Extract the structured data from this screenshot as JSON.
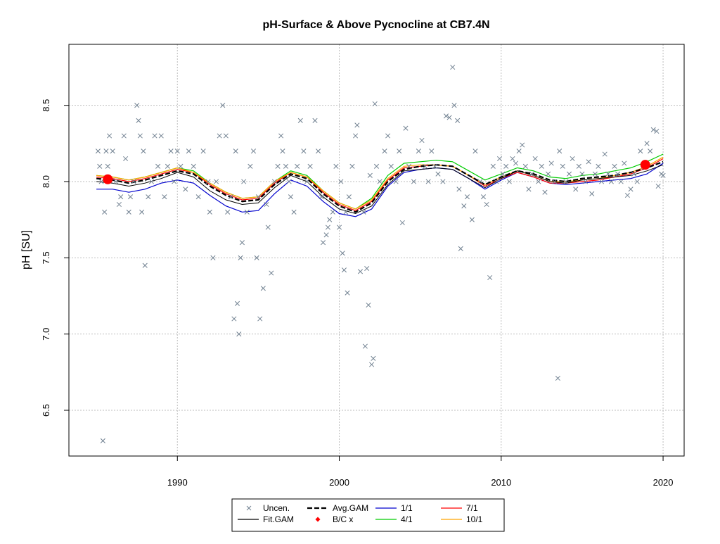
{
  "colors": {
    "uncensored": "#708090",
    "fit_gam": "#000000",
    "avg_gam": "#000000",
    "bc_x": "#ff0000",
    "ratio_1_1": "#0000cd",
    "ratio_4_1": "#00cc00",
    "ratio_7_1": "#ff0000",
    "ratio_10_1": "#ffa500",
    "grid": "#bebebe"
  },
  "chart_data": {
    "type": "scatter",
    "title": "pH-Surface & Above Pycnocline at CB7.4N",
    "xlabel": "",
    "ylabel": "pH [SU]",
    "xlim": [
      1983.3,
      2021.3
    ],
    "ylim": [
      6.2,
      8.9
    ],
    "x_ticks": [
      1990,
      2000,
      2010,
      2020
    ],
    "y_ticks": [
      6.5,
      7.0,
      7.5,
      8.0,
      8.5
    ],
    "x_tick_labels": [
      "1990",
      "2000",
      "2010",
      "2020"
    ],
    "y_tick_labels": [
      "6.5",
      "7.0",
      "7.5",
      "8.0",
      "8.5"
    ],
    "grid": true,
    "legend": {
      "placement": "bottom-center",
      "entries": [
        {
          "label": "Uncen.",
          "symbol": "x",
          "color_key": "uncensored"
        },
        {
          "label": "Avg.GAM",
          "symbol": "dashed-line",
          "color_key": "avg_gam"
        },
        {
          "label": "1/1",
          "symbol": "line",
          "color_key": "ratio_1_1"
        },
        {
          "label": "7/1",
          "symbol": "line",
          "color_key": "ratio_7_1"
        },
        {
          "label": "Fit.GAM",
          "symbol": "line",
          "color_key": "fit_gam"
        },
        {
          "label": "B/C x",
          "symbol": "diamond",
          "color_key": "bc_x"
        },
        {
          "label": "4/1",
          "symbol": "line",
          "color_key": "ratio_4_1"
        },
        {
          "label": "10/1",
          "symbol": "line",
          "color_key": "ratio_10_1"
        }
      ]
    },
    "uncensored_points": [
      [
        1985.1,
        8.2
      ],
      [
        1985.2,
        8.1
      ],
      [
        1985.3,
        8.0
      ],
      [
        1985.4,
        6.3
      ],
      [
        1985.5,
        7.8
      ],
      [
        1985.6,
        8.2
      ],
      [
        1985.7,
        8.1
      ],
      [
        1985.8,
        8.3
      ],
      [
        1986.0,
        8.2
      ],
      [
        1986.2,
        8.0
      ],
      [
        1986.4,
        7.85
      ],
      [
        1986.5,
        7.9
      ],
      [
        1986.7,
        8.3
      ],
      [
        1986.8,
        8.15
      ],
      [
        1987.0,
        7.8
      ],
      [
        1987.1,
        7.9
      ],
      [
        1987.3,
        8.0
      ],
      [
        1987.5,
        8.5
      ],
      [
        1987.6,
        8.4
      ],
      [
        1987.7,
        8.3
      ],
      [
        1987.8,
        7.8
      ],
      [
        1987.9,
        8.2
      ],
      [
        1988.0,
        7.45
      ],
      [
        1988.2,
        7.9
      ],
      [
        1988.4,
        8.0
      ],
      [
        1988.6,
        8.3
      ],
      [
        1988.8,
        8.1
      ],
      [
        1989.0,
        8.3
      ],
      [
        1989.2,
        7.9
      ],
      [
        1989.4,
        8.1
      ],
      [
        1989.6,
        8.2
      ],
      [
        1989.8,
        8.0
      ],
      [
        1990.0,
        8.2
      ],
      [
        1990.2,
        8.1
      ],
      [
        1990.5,
        7.95
      ],
      [
        1990.7,
        8.2
      ],
      [
        1991.0,
        8.1
      ],
      [
        1991.3,
        7.9
      ],
      [
        1991.6,
        8.2
      ],
      [
        1991.9,
        8.0
      ],
      [
        1992.0,
        7.8
      ],
      [
        1992.2,
        7.5
      ],
      [
        1992.4,
        8.0
      ],
      [
        1992.6,
        8.3
      ],
      [
        1992.8,
        8.5
      ],
      [
        1993.0,
        8.3
      ],
      [
        1993.1,
        7.8
      ],
      [
        1993.3,
        7.9
      ],
      [
        1993.5,
        7.1
      ],
      [
        1993.6,
        8.2
      ],
      [
        1993.7,
        7.2
      ],
      [
        1993.8,
        7.0
      ],
      [
        1993.9,
        7.5
      ],
      [
        1994.0,
        7.6
      ],
      [
        1994.1,
        8.0
      ],
      [
        1994.3,
        7.8
      ],
      [
        1994.5,
        8.1
      ],
      [
        1994.7,
        8.2
      ],
      [
        1994.9,
        7.5
      ],
      [
        1995.0,
        7.9
      ],
      [
        1995.1,
        7.1
      ],
      [
        1995.3,
        7.3
      ],
      [
        1995.5,
        7.85
      ],
      [
        1995.6,
        7.7
      ],
      [
        1995.8,
        7.4
      ],
      [
        1996.0,
        8.0
      ],
      [
        1996.2,
        8.1
      ],
      [
        1996.4,
        8.3
      ],
      [
        1996.5,
        8.2
      ],
      [
        1996.7,
        8.1
      ],
      [
        1996.9,
        8.0
      ],
      [
        1997.0,
        7.9
      ],
      [
        1997.2,
        7.8
      ],
      [
        1997.4,
        8.1
      ],
      [
        1997.6,
        8.4
      ],
      [
        1997.8,
        8.2
      ],
      [
        1998.0,
        8.0
      ],
      [
        1998.2,
        8.1
      ],
      [
        1998.5,
        8.4
      ],
      [
        1998.7,
        8.2
      ],
      [
        1998.9,
        7.9
      ],
      [
        1999.0,
        7.6
      ],
      [
        1999.2,
        7.65
      ],
      [
        1999.3,
        7.7
      ],
      [
        1999.4,
        7.75
      ],
      [
        1999.6,
        7.8
      ],
      [
        1999.8,
        8.1
      ],
      [
        2000.0,
        7.7
      ],
      [
        2000.1,
        8.0
      ],
      [
        2000.2,
        7.53
      ],
      [
        2000.3,
        7.42
      ],
      [
        2000.4,
        7.8
      ],
      [
        2000.5,
        7.27
      ],
      [
        2000.6,
        7.9
      ],
      [
        2000.8,
        8.1
      ],
      [
        2001.0,
        8.3
      ],
      [
        2001.1,
        8.37
      ],
      [
        2001.3,
        7.41
      ],
      [
        2001.5,
        7.8
      ],
      [
        2001.6,
        6.92
      ],
      [
        2001.7,
        7.43
      ],
      [
        2001.8,
        7.19
      ],
      [
        2001.9,
        8.04
      ],
      [
        2002.0,
        6.8
      ],
      [
        2002.1,
        6.84
      ],
      [
        2002.2,
        8.51
      ],
      [
        2002.3,
        8.1
      ],
      [
        2002.5,
        8.0
      ],
      [
        2002.8,
        8.2
      ],
      [
        2003.0,
        8.3
      ],
      [
        2003.2,
        8.1
      ],
      [
        2003.5,
        8.0
      ],
      [
        2003.7,
        8.2
      ],
      [
        2003.9,
        7.73
      ],
      [
        2004.1,
        8.35
      ],
      [
        2004.3,
        8.1
      ],
      [
        2004.6,
        8.0
      ],
      [
        2004.9,
        8.2
      ],
      [
        2005.1,
        8.27
      ],
      [
        2005.3,
        8.1
      ],
      [
        2005.5,
        8.0
      ],
      [
        2005.7,
        8.2
      ],
      [
        2005.9,
        8.1
      ],
      [
        2006.1,
        8.05
      ],
      [
        2006.4,
        8.0
      ],
      [
        2006.6,
        8.43
      ],
      [
        2006.8,
        8.42
      ],
      [
        2007.0,
        8.75
      ],
      [
        2007.1,
        8.5
      ],
      [
        2007.3,
        8.4
      ],
      [
        2007.4,
        7.95
      ],
      [
        2007.5,
        7.56
      ],
      [
        2007.7,
        7.84
      ],
      [
        2007.9,
        7.9
      ],
      [
        2008.2,
        7.75
      ],
      [
        2008.4,
        8.2
      ],
      [
        2008.7,
        8.0
      ],
      [
        2008.9,
        7.9
      ],
      [
        2009.1,
        7.85
      ],
      [
        2009.3,
        7.37
      ],
      [
        2009.5,
        8.1
      ],
      [
        2009.7,
        8.0
      ],
      [
        2009.9,
        8.15
      ],
      [
        2010.1,
        8.05
      ],
      [
        2010.3,
        8.1
      ],
      [
        2010.5,
        8.0
      ],
      [
        2010.7,
        8.15
      ],
      [
        2010.9,
        8.12
      ],
      [
        2011.1,
        8.2
      ],
      [
        2011.3,
        8.24
      ],
      [
        2011.5,
        8.1
      ],
      [
        2011.7,
        7.95
      ],
      [
        2011.9,
        8.05
      ],
      [
        2012.1,
        8.15
      ],
      [
        2012.3,
        8.0
      ],
      [
        2012.5,
        8.1
      ],
      [
        2012.7,
        7.93
      ],
      [
        2012.9,
        8.05
      ],
      [
        2013.1,
        8.12
      ],
      [
        2013.3,
        8.0
      ],
      [
        2013.5,
        6.71
      ],
      [
        2013.6,
        8.2
      ],
      [
        2013.8,
        8.1
      ],
      [
        2014.0,
        8.0
      ],
      [
        2014.2,
        8.05
      ],
      [
        2014.4,
        8.15
      ],
      [
        2014.6,
        7.95
      ],
      [
        2014.8,
        8.1
      ],
      [
        2015.0,
        8.05
      ],
      [
        2015.2,
        8.0
      ],
      [
        2015.4,
        8.13
      ],
      [
        2015.6,
        7.92
      ],
      [
        2015.8,
        8.05
      ],
      [
        2016.0,
        8.1
      ],
      [
        2016.2,
        8.0
      ],
      [
        2016.4,
        8.18
      ],
      [
        2016.6,
        8.05
      ],
      [
        2016.8,
        8.0
      ],
      [
        2017.0,
        8.1
      ],
      [
        2017.2,
        8.05
      ],
      [
        2017.4,
        8.0
      ],
      [
        2017.6,
        8.12
      ],
      [
        2017.8,
        7.91
      ],
      [
        2018.0,
        7.95
      ],
      [
        2018.2,
        8.05
      ],
      [
        2018.4,
        8.0
      ],
      [
        2018.6,
        8.2
      ],
      [
        2018.8,
        8.1
      ],
      [
        2019.0,
        8.25
      ],
      [
        2019.2,
        8.2
      ],
      [
        2019.4,
        8.34
      ],
      [
        2019.6,
        8.33
      ],
      [
        2019.7,
        7.97
      ],
      [
        2019.9,
        8.05
      ],
      [
        2020.0,
        8.04
      ]
    ],
    "bc_points": [
      [
        1985.7,
        8.015
      ],
      [
        2018.9,
        8.11
      ]
    ],
    "fit_gam": {
      "x": [
        1985,
        1986,
        1987,
        1988,
        1989,
        1990,
        1991,
        1992,
        1993,
        1994,
        1995,
        1996,
        1997,
        1998,
        1999,
        2000,
        2001,
        2002,
        2003,
        2004,
        2005,
        2006,
        2007,
        2008,
        2009,
        2010,
        2011,
        2012,
        2013,
        2014,
        2015,
        2016,
        2017,
        2018,
        2019,
        2020
      ],
      "y": [
        8.0,
        7.99,
        7.97,
        7.99,
        8.02,
        8.06,
        8.03,
        7.94,
        7.88,
        7.85,
        7.86,
        7.96,
        8.04,
        8.0,
        7.9,
        7.82,
        7.79,
        7.84,
        7.98,
        8.07,
        8.08,
        8.09,
        8.08,
        8.02,
        7.96,
        8.02,
        8.07,
        8.04,
        8.0,
        7.99,
        8.01,
        8.02,
        8.03,
        8.04,
        8.07,
        8.11
      ]
    },
    "avg_gam": {
      "x": [
        1985,
        1986,
        1987,
        1988,
        1989,
        1990,
        1991,
        1992,
        1993,
        1994,
        1995,
        1996,
        1997,
        1998,
        1999,
        2000,
        2001,
        2002,
        2003,
        2004,
        2005,
        2006,
        2007,
        2008,
        2009,
        2010,
        2011,
        2012,
        2013,
        2014,
        2015,
        2016,
        2017,
        2018,
        2019,
        2020
      ],
      "y": [
        8.02,
        8.01,
        7.99,
        8.01,
        8.04,
        8.07,
        8.05,
        7.97,
        7.91,
        7.87,
        7.88,
        7.98,
        8.05,
        8.02,
        7.92,
        7.84,
        7.8,
        7.86,
        8.0,
        8.08,
        8.1,
        8.11,
        8.1,
        8.04,
        7.98,
        8.03,
        8.07,
        8.05,
        8.01,
        8.0,
        8.02,
        8.03,
        8.04,
        8.06,
        8.09,
        8.13
      ]
    },
    "series": [
      {
        "name": "1/1",
        "color_key": "ratio_1_1",
        "x": [
          1985,
          1986,
          1987,
          1988,
          1989,
          1990,
          1991,
          1992,
          1993,
          1994,
          1995,
          1996,
          1997,
          1998,
          1999,
          2000,
          2001,
          2002,
          2003,
          2004,
          2005,
          2006,
          2007,
          2008,
          2009,
          2010,
          2011,
          2012,
          2013,
          2014,
          2015,
          2016,
          2017,
          2018,
          2019,
          2020
        ],
        "y": [
          7.95,
          7.95,
          7.93,
          7.95,
          7.99,
          8.01,
          7.99,
          7.91,
          7.84,
          7.8,
          7.81,
          7.92,
          8.01,
          7.97,
          7.87,
          7.79,
          7.77,
          7.82,
          7.97,
          8.06,
          8.08,
          8.09,
          8.08,
          8.02,
          7.95,
          8.01,
          8.06,
          8.03,
          7.99,
          7.98,
          7.99,
          8.0,
          8.01,
          8.02,
          8.05,
          8.12
        ]
      },
      {
        "name": "4/1",
        "color_key": "ratio_4_1",
        "x": [
          1985,
          1986,
          1987,
          1988,
          1989,
          1990,
          1991,
          1992,
          1993,
          1994,
          1995,
          1996,
          1997,
          1998,
          1999,
          2000,
          2001,
          2002,
          2003,
          2004,
          2005,
          2006,
          2007,
          2008,
          2009,
          2010,
          2011,
          2012,
          2013,
          2014,
          2015,
          2016,
          2017,
          2018,
          2019,
          2020
        ],
        "y": [
          8.04,
          8.03,
          8.01,
          8.03,
          8.06,
          8.09,
          8.07,
          7.99,
          7.93,
          7.89,
          7.9,
          8.0,
          8.07,
          8.04,
          7.94,
          7.86,
          7.82,
          7.89,
          8.04,
          8.12,
          8.13,
          8.14,
          8.13,
          8.07,
          8.01,
          8.05,
          8.09,
          8.07,
          8.03,
          8.02,
          8.04,
          8.05,
          8.07,
          8.09,
          8.13,
          8.18
        ]
      },
      {
        "name": "7/1",
        "color_key": "ratio_7_1",
        "x": [
          1985,
          1986,
          1987,
          1988,
          1989,
          1990,
          1991,
          1992,
          1993,
          1994,
          1995,
          1996,
          1997,
          1998,
          1999,
          2000,
          2001,
          2002,
          2003,
          2004,
          2005,
          2006,
          2007,
          2008,
          2009,
          2010,
          2011,
          2012,
          2013,
          2014,
          2015,
          2016,
          2017,
          2018,
          2019,
          2020
        ],
        "y": [
          8.03,
          8.02,
          8.0,
          8.02,
          8.05,
          8.08,
          8.06,
          7.98,
          7.92,
          7.88,
          7.89,
          7.99,
          8.06,
          8.03,
          7.93,
          7.85,
          7.81,
          7.87,
          8.01,
          8.09,
          8.1,
          8.11,
          8.1,
          8.04,
          7.97,
          8.02,
          8.06,
          8.03,
          7.99,
          7.99,
          8.0,
          8.01,
          8.03,
          8.05,
          8.09,
          8.15
        ]
      },
      {
        "name": "10/1",
        "color_key": "ratio_10_1",
        "x": [
          1985,
          1986,
          1987,
          1988,
          1989,
          1990,
          1991,
          1992,
          1993,
          1994,
          1995,
          1996,
          1997,
          1998,
          1999,
          2000,
          2001,
          2002,
          2003,
          2004,
          2005,
          2006,
          2007,
          2008,
          2009,
          2010,
          2011,
          2012,
          2013,
          2014,
          2015,
          2016,
          2017,
          2018,
          2019,
          2020
        ],
        "y": [
          8.04,
          8.03,
          8.01,
          8.03,
          8.06,
          8.09,
          8.06,
          7.99,
          7.93,
          7.89,
          7.9,
          8.0,
          8.06,
          8.03,
          7.94,
          7.86,
          7.82,
          7.88,
          8.02,
          8.1,
          8.11,
          8.11,
          8.1,
          8.04,
          7.98,
          8.03,
          8.07,
          8.04,
          8.0,
          8.0,
          8.01,
          8.02,
          8.04,
          8.06,
          8.1,
          8.16
        ]
      }
    ]
  }
}
